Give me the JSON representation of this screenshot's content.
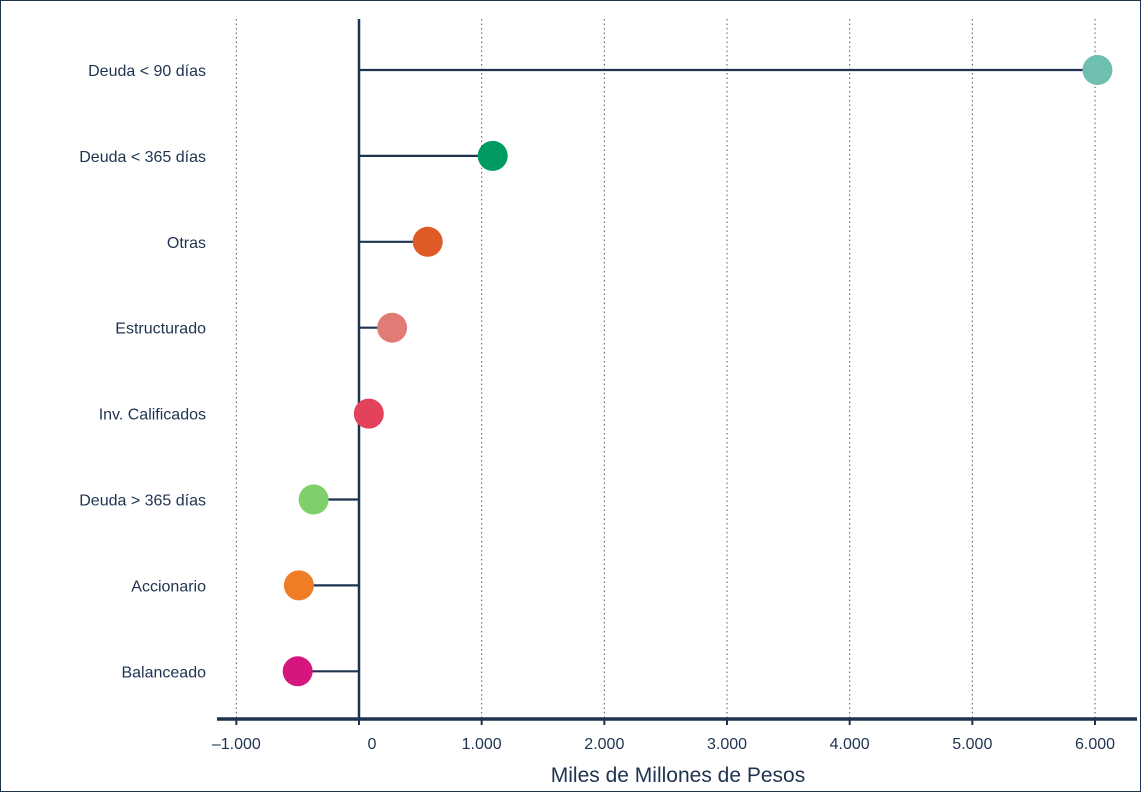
{
  "chart_data": {
    "type": "lollipop",
    "title": "",
    "xlabel": "Miles de Millones de Pesos",
    "ylabel": "",
    "xlim": [
      -1200,
      6350
    ],
    "x_ticks": [
      -1000,
      0,
      1000,
      2000,
      3000,
      4000,
      5000,
      6000
    ],
    "x_tick_labels": [
      "–1.000",
      "0",
      "1.000",
      "2.000",
      "3.000",
      "4.000",
      "5.000",
      "6.000"
    ],
    "grid": "vertical-dotted",
    "legend": "none",
    "categories": [
      "Deuda < 90 días",
      "Deuda < 365 días",
      "Otras",
      "Estructurado",
      "Inv. Calificados",
      "Deuda > 365 días",
      "Accionario",
      "Balanceado"
    ],
    "values": [
      6020,
      1090,
      560,
      270,
      80,
      -370,
      -490,
      -500
    ],
    "colors": [
      "#6fbfb0",
      "#009b62",
      "#e05a25",
      "#e07b76",
      "#e2425a",
      "#7fd06a",
      "#ee7d26",
      "#d6157f"
    ],
    "line_color": "#1f3350"
  }
}
